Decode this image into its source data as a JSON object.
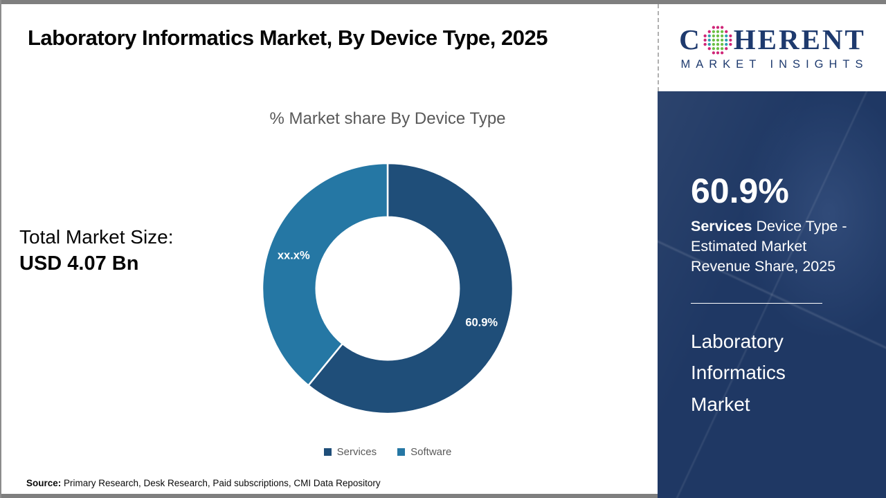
{
  "page": {
    "title": "Laboratory Informatics Market, By Device Type, 2025",
    "source_label": "Source:",
    "source_text": " Primary Research, Desk Research, Paid subscriptions, CMI Data Repository"
  },
  "stats": {
    "total_label": "Total Market Size:",
    "total_value": "USD 4.07 Bn"
  },
  "chart_data": {
    "type": "pie",
    "variant": "donut",
    "title": "% Market share By Device Type",
    "start_angle_deg": 0,
    "inner_radius_ratio": 0.57,
    "legend_position": "bottom",
    "slices": [
      {
        "label": "Services",
        "value": 60.9,
        "display": "60.9%",
        "color": "#1f4e79"
      },
      {
        "label": "Software",
        "value": 39.1,
        "display": "xx.x%",
        "color": "#2577a4"
      }
    ]
  },
  "panel": {
    "stat_value": "60.9%",
    "stat_bold": "Services",
    "stat_desc": " Device Type - Estimated Market Revenue Share, 2025",
    "market_name": "Laboratory Informatics Market",
    "bg_color": "#1f3864"
  },
  "logo": {
    "word_pre": "C",
    "word_post": "HERENT",
    "subtitle": "MARKET INSIGHTS",
    "navy": "#1e3a6e",
    "globe_outer_color": "#cf2577",
    "globe_mid_color": "#2d9fb0",
    "globe_inner_color": "#6cbf45"
  }
}
